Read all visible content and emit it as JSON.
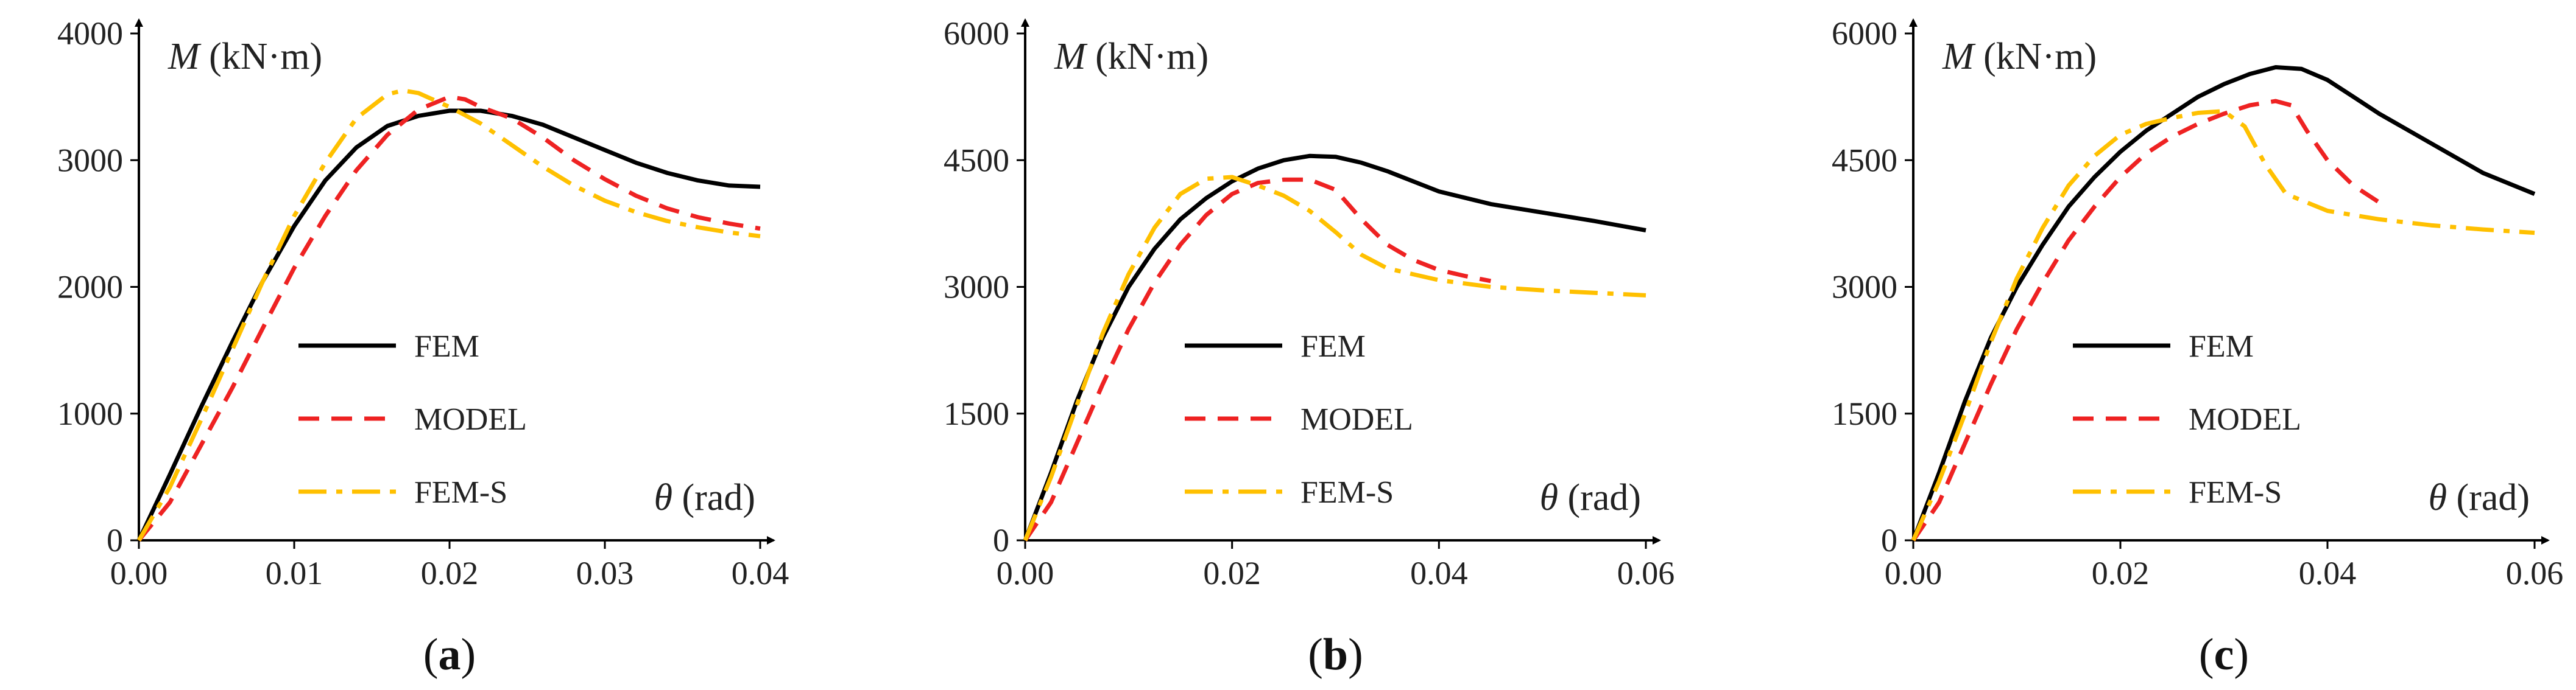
{
  "chart_data": [
    {
      "type": "line",
      "panel_label": {
        "open": "(",
        "letter": "a",
        "close": ")"
      },
      "xlabel": {
        "symbol": "θ",
        "unit": " (rad)"
      },
      "ylabel": {
        "symbol": "M",
        "unit": " (kN·m)"
      },
      "xlim": [
        0,
        0.04
      ],
      "ylim": [
        0,
        4000
      ],
      "xticks": [
        0,
        0.01,
        0.02,
        0.03,
        0.04
      ],
      "xtick_labels": [
        "0.00",
        "0.01",
        "0.02",
        "0.03",
        "0.04"
      ],
      "yticks": [
        0,
        1000,
        2000,
        3000,
        4000
      ],
      "ytick_labels": [
        "0",
        "1000",
        "2000",
        "3000",
        "4000"
      ],
      "grid": false,
      "legend_position": "center",
      "series": [
        {
          "name": "FEM",
          "color": "#000000",
          "dash": "solid",
          "points": [
            [
              0,
              0
            ],
            [
              0.002,
              520
            ],
            [
              0.004,
              1050
            ],
            [
              0.006,
              1560
            ],
            [
              0.008,
              2050
            ],
            [
              0.01,
              2480
            ],
            [
              0.012,
              2840
            ],
            [
              0.014,
              3100
            ],
            [
              0.016,
              3270
            ],
            [
              0.018,
              3350
            ],
            [
              0.02,
              3390
            ],
            [
              0.022,
              3390
            ],
            [
              0.024,
              3350
            ],
            [
              0.026,
              3280
            ],
            [
              0.028,
              3180
            ],
            [
              0.03,
              3080
            ],
            [
              0.032,
              2980
            ],
            [
              0.034,
              2900
            ],
            [
              0.036,
              2840
            ],
            [
              0.038,
              2800
            ],
            [
              0.04,
              2790
            ]
          ]
        },
        {
          "name": "MODEL",
          "color": "#ee2222",
          "dash": "dashed",
          "points": [
            [
              0,
              0
            ],
            [
              0.002,
              300
            ],
            [
              0.004,
              750
            ],
            [
              0.006,
              1200
            ],
            [
              0.008,
              1680
            ],
            [
              0.01,
              2150
            ],
            [
              0.012,
              2560
            ],
            [
              0.014,
              2920
            ],
            [
              0.016,
              3200
            ],
            [
              0.018,
              3400
            ],
            [
              0.02,
              3500
            ],
            [
              0.021,
              3480
            ],
            [
              0.022,
              3420
            ],
            [
              0.024,
              3330
            ],
            [
              0.026,
              3180
            ],
            [
              0.028,
              3000
            ],
            [
              0.03,
              2850
            ],
            [
              0.032,
              2720
            ],
            [
              0.034,
              2620
            ],
            [
              0.036,
              2550
            ],
            [
              0.038,
              2500
            ],
            [
              0.04,
              2460
            ]
          ]
        },
        {
          "name": "FEM-S",
          "color": "#ffc000",
          "dash": "dashdot",
          "points": [
            [
              0,
              0
            ],
            [
              0.002,
              420
            ],
            [
              0.004,
              950
            ],
            [
              0.006,
              1500
            ],
            [
              0.008,
              2050
            ],
            [
              0.01,
              2560
            ],
            [
              0.012,
              2980
            ],
            [
              0.014,
              3330
            ],
            [
              0.016,
              3520
            ],
            [
              0.017,
              3550
            ],
            [
              0.018,
              3530
            ],
            [
              0.02,
              3420
            ],
            [
              0.022,
              3290
            ],
            [
              0.024,
              3120
            ],
            [
              0.026,
              2950
            ],
            [
              0.028,
              2800
            ],
            [
              0.03,
              2680
            ],
            [
              0.032,
              2590
            ],
            [
              0.034,
              2520
            ],
            [
              0.036,
              2470
            ],
            [
              0.038,
              2430
            ],
            [
              0.04,
              2400
            ]
          ]
        }
      ]
    },
    {
      "type": "line",
      "panel_label": {
        "open": "(",
        "letter": "b",
        "close": ")"
      },
      "xlabel": {
        "symbol": "θ",
        "unit": " (rad)"
      },
      "ylabel": {
        "symbol": "M",
        "unit": " (kN·m)"
      },
      "xlim": [
        0,
        0.06
      ],
      "ylim": [
        0,
        6000
      ],
      "xticks": [
        0,
        0.02,
        0.04,
        0.06
      ],
      "xtick_labels": [
        "0.00",
        "0.02",
        "0.04",
        "0.06"
      ],
      "yticks": [
        0,
        1500,
        3000,
        4500,
        6000
      ],
      "ytick_labels": [
        "0",
        "1500",
        "3000",
        "4500",
        "6000"
      ],
      "grid": false,
      "legend_position": "center",
      "series": [
        {
          "name": "FEM",
          "color": "#000000",
          "dash": "solid",
          "points": [
            [
              0,
              0
            ],
            [
              0.0025,
              800
            ],
            [
              0.005,
              1650
            ],
            [
              0.0075,
              2400
            ],
            [
              0.01,
              3000
            ],
            [
              0.0125,
              3450
            ],
            [
              0.015,
              3800
            ],
            [
              0.0175,
              4050
            ],
            [
              0.02,
              4250
            ],
            [
              0.0225,
              4400
            ],
            [
              0.025,
              4500
            ],
            [
              0.0275,
              4550
            ],
            [
              0.03,
              4540
            ],
            [
              0.0325,
              4470
            ],
            [
              0.035,
              4370
            ],
            [
              0.0375,
              4250
            ],
            [
              0.04,
              4130
            ],
            [
              0.045,
              3980
            ],
            [
              0.05,
              3880
            ],
            [
              0.055,
              3780
            ],
            [
              0.06,
              3670
            ]
          ]
        },
        {
          "name": "MODEL",
          "color": "#ee2222",
          "dash": "dashed",
          "points": [
            [
              0,
              0
            ],
            [
              0.0025,
              450
            ],
            [
              0.005,
              1150
            ],
            [
              0.0075,
              1850
            ],
            [
              0.01,
              2500
            ],
            [
              0.0125,
              3050
            ],
            [
              0.015,
              3500
            ],
            [
              0.0175,
              3850
            ],
            [
              0.02,
              4100
            ],
            [
              0.0225,
              4230
            ],
            [
              0.025,
              4270
            ],
            [
              0.0275,
              4270
            ],
            [
              0.03,
              4150
            ],
            [
              0.0325,
              3800
            ],
            [
              0.035,
              3500
            ],
            [
              0.0375,
              3320
            ],
            [
              0.04,
              3200
            ],
            [
              0.0425,
              3130
            ],
            [
              0.045,
              3070
            ]
          ]
        },
        {
          "name": "FEM-S",
          "color": "#ffc000",
          "dash": "dashdot",
          "points": [
            [
              0,
              0
            ],
            [
              0.0025,
              750
            ],
            [
              0.005,
              1600
            ],
            [
              0.0075,
              2450
            ],
            [
              0.01,
              3150
            ],
            [
              0.0125,
              3700
            ],
            [
              0.015,
              4100
            ],
            [
              0.0175,
              4280
            ],
            [
              0.02,
              4300
            ],
            [
              0.0225,
              4200
            ],
            [
              0.025,
              4080
            ],
            [
              0.0275,
              3900
            ],
            [
              0.03,
              3650
            ],
            [
              0.0325,
              3380
            ],
            [
              0.035,
              3220
            ],
            [
              0.04,
              3080
            ],
            [
              0.045,
              3000
            ],
            [
              0.05,
              2960
            ],
            [
              0.055,
              2930
            ],
            [
              0.06,
              2900
            ]
          ]
        }
      ]
    },
    {
      "type": "line",
      "panel_label": {
        "open": "(",
        "letter": "c",
        "close": ")"
      },
      "xlabel": {
        "symbol": "θ",
        "unit": " (rad)"
      },
      "ylabel": {
        "symbol": "M",
        "unit": " (kN·m)"
      },
      "xlim": [
        0,
        0.06
      ],
      "ylim": [
        0,
        6000
      ],
      "xticks": [
        0,
        0.02,
        0.04,
        0.06
      ],
      "xtick_labels": [
        "0.00",
        "0.02",
        "0.04",
        "0.06"
      ],
      "yticks": [
        0,
        1500,
        3000,
        4500,
        6000
      ],
      "ytick_labels": [
        "0",
        "1500",
        "3000",
        "4500",
        "6000"
      ],
      "grid": false,
      "legend_position": "center",
      "series": [
        {
          "name": "FEM",
          "color": "#000000",
          "dash": "solid",
          "points": [
            [
              0,
              0
            ],
            [
              0.0025,
              800
            ],
            [
              0.005,
              1650
            ],
            [
              0.0075,
              2400
            ],
            [
              0.01,
              3000
            ],
            [
              0.0125,
              3500
            ],
            [
              0.015,
              3950
            ],
            [
              0.0175,
              4300
            ],
            [
              0.02,
              4600
            ],
            [
              0.0225,
              4850
            ],
            [
              0.025,
              5050
            ],
            [
              0.0275,
              5250
            ],
            [
              0.03,
              5400
            ],
            [
              0.0325,
              5520
            ],
            [
              0.035,
              5600
            ],
            [
              0.0375,
              5580
            ],
            [
              0.04,
              5450
            ],
            [
              0.0425,
              5250
            ],
            [
              0.045,
              5050
            ],
            [
              0.05,
              4700
            ],
            [
              0.055,
              4350
            ],
            [
              0.06,
              4100
            ]
          ]
        },
        {
          "name": "MODEL",
          "color": "#ee2222",
          "dash": "dashed",
          "points": [
            [
              0,
              0
            ],
            [
              0.0025,
              450
            ],
            [
              0.005,
              1150
            ],
            [
              0.0075,
              1850
            ],
            [
              0.01,
              2500
            ],
            [
              0.0125,
              3050
            ],
            [
              0.015,
              3550
            ],
            [
              0.0175,
              3950
            ],
            [
              0.02,
              4300
            ],
            [
              0.0225,
              4580
            ],
            [
              0.025,
              4780
            ],
            [
              0.0275,
              4930
            ],
            [
              0.03,
              5050
            ],
            [
              0.0325,
              5150
            ],
            [
              0.035,
              5200
            ],
            [
              0.0365,
              5150
            ],
            [
              0.038,
              4850
            ],
            [
              0.04,
              4500
            ],
            [
              0.0425,
              4200
            ],
            [
              0.045,
              4000
            ]
          ]
        },
        {
          "name": "FEM-S",
          "color": "#ffc000",
          "dash": "dashdot",
          "points": [
            [
              0,
              0
            ],
            [
              0.0025,
              700
            ],
            [
              0.005,
              1500
            ],
            [
              0.0075,
              2350
            ],
            [
              0.01,
              3100
            ],
            [
              0.0125,
              3700
            ],
            [
              0.015,
              4200
            ],
            [
              0.0175,
              4550
            ],
            [
              0.02,
              4800
            ],
            [
              0.0225,
              4930
            ],
            [
              0.025,
              5000
            ],
            [
              0.0275,
              5060
            ],
            [
              0.03,
              5080
            ],
            [
              0.032,
              4900
            ],
            [
              0.034,
              4450
            ],
            [
              0.036,
              4100
            ],
            [
              0.04,
              3900
            ],
            [
              0.045,
              3800
            ],
            [
              0.05,
              3730
            ],
            [
              0.055,
              3680
            ],
            [
              0.06,
              3640
            ]
          ]
        }
      ]
    }
  ]
}
